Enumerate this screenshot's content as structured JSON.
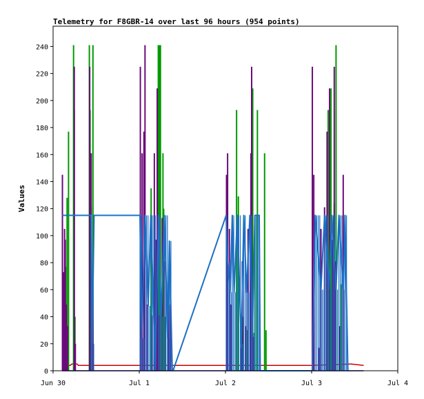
{
  "chart_data": {
    "type": "line",
    "title": "Telemetry for F8GBR-14 over last 96 hours (954 points)",
    "xlabel": "",
    "ylabel": "Values",
    "ylim": [
      0,
      255
    ],
    "yticks": [
      0,
      20,
      40,
      60,
      80,
      100,
      120,
      140,
      160,
      180,
      200,
      220,
      240
    ],
    "xlim": [
      0,
      96
    ],
    "xticks": [
      {
        "value": 0,
        "label": "Jun 30"
      },
      {
        "value": 24,
        "label": "Jul 1"
      },
      {
        "value": 48,
        "label": "Jul 2"
      },
      {
        "value": 72,
        "label": "Jul 3"
      },
      {
        "value": 96,
        "label": "Jul 4"
      }
    ],
    "grid": false,
    "legend": "none",
    "series": [
      {
        "color": "#0000aa",
        "style": "line",
        "x": [
          2.5,
          86.5
        ],
        "y": [
          0,
          0
        ]
      },
      {
        "color": "#cc0000",
        "style": "line",
        "x": [
          2.5,
          4.8,
          5.2,
          6.7,
          7,
          24,
          48,
          72,
          83,
          86.5
        ],
        "y": [
          4,
          4,
          5,
          5,
          4,
          4,
          4,
          4,
          5,
          4
        ]
      },
      {
        "color": "#009900",
        "style": "spikes",
        "x": [
          3.5,
          3.9,
          4.3,
          5.7,
          5.9,
          6.1,
          10.1,
          10.3,
          10.6,
          11.1,
          27.3,
          28.3,
          29.1,
          29.3,
          29.6,
          29.9,
          30.6,
          30.8,
          31.2,
          51.1,
          51.6,
          52.9,
          54.1,
          55.2,
          55.6,
          56.2,
          56.9,
          58.9,
          59.3,
          76.6,
          77.4,
          78.3,
          78.8,
          80.3
        ],
        "y": [
          77,
          128,
          177,
          241,
          193,
          40,
          241,
          193,
          121,
          241,
          135,
          90,
          161,
          241,
          241,
          241,
          161,
          120,
          40,
          193,
          129,
          40,
          30,
          128,
          209,
          113,
          193,
          161,
          30,
          193,
          209,
          124,
          241,
          64
        ]
      },
      {
        "color": "#6a0a7a",
        "style": "spikes",
        "x": [
          2.6,
          2.9,
          3.2,
          3.4,
          3.7,
          4.0,
          5.9,
          6.2,
          10.2,
          10.6,
          11.1,
          24.3,
          24.8,
          25.3,
          25.6,
          26.1,
          27.6,
          28.2,
          28.6,
          29.0,
          29.6,
          30.4,
          31.0,
          32.1,
          32.7,
          48.3,
          48.6,
          49.1,
          49.5,
          49.8,
          52.3,
          52.7,
          53.6,
          54.3,
          55.1,
          55.3,
          55.8,
          72.2,
          72.6,
          74.1,
          74.6,
          75.6,
          76.3,
          77.0,
          77.8,
          78.3,
          78.6,
          79.8,
          80.8
        ],
        "y": [
          145,
          73,
          105,
          97,
          49,
          33,
          225,
          20,
          225,
          161,
          65,
          225,
          161,
          177,
          241,
          49,
          41,
          161,
          97,
          209,
          41,
          113,
          81,
          65,
          49,
          145,
          161,
          105,
          49,
          17,
          17,
          81,
          33,
          105,
          161,
          225,
          25,
          225,
          145,
          17,
          105,
          121,
          177,
          209,
          97,
          225,
          81,
          33,
          145
        ]
      },
      {
        "color": "#1c6fc4",
        "style": "band",
        "x": [
          2.5,
          10.6,
          10.9,
          11.4,
          24.2,
          24.7,
          25.6,
          26.5,
          27.2,
          28.5,
          29.3,
          30.1,
          31.0,
          31.9,
          32.4,
          33.2,
          33.4,
          48.2,
          48.6,
          49.3,
          49.9,
          50.4,
          51.3,
          52.4,
          53.1,
          53.9,
          54.8,
          55.5,
          56.2,
          57.4,
          57.7,
          72.2,
          73.0,
          74.6,
          75.6,
          76.8,
          77.6,
          78.8,
          79.6,
          80.8,
          81.3,
          82.1,
          82.4
        ],
        "y": [
          115,
          115,
          20,
          115,
          115,
          24,
          115,
          48,
          115,
          0,
          115,
          40,
          115,
          24,
          96,
          0,
          0,
          115,
          80,
          58,
          115,
          58,
          115,
          20,
          115,
          58,
          115,
          28,
          115,
          115,
          0,
          0,
          115,
          60,
          115,
          60,
          115,
          60,
          115,
          60,
          115,
          0,
          0
        ]
      }
    ]
  }
}
